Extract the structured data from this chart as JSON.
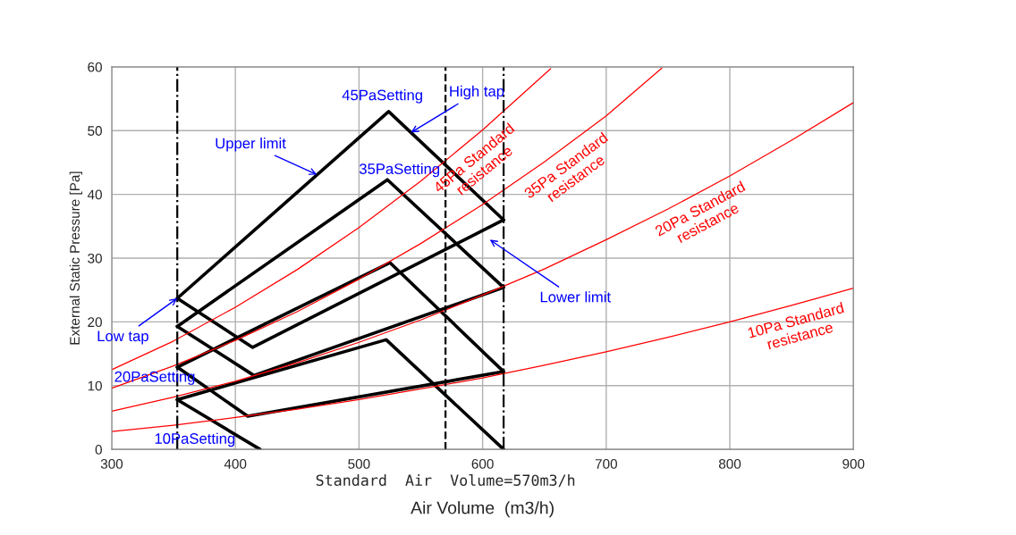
{
  "chart_data": {
    "type": "line",
    "xlabel": "Air Volume  (m3/h)",
    "ylabel": "External Static Pressure [Pa]",
    "xlim": [
      300,
      900
    ],
    "ylim": [
      0,
      60
    ],
    "xticks": [
      300,
      400,
      500,
      600,
      700,
      800,
      900
    ],
    "yticks": [
      0,
      10,
      20,
      30,
      40,
      50,
      60
    ],
    "grid": true,
    "marker": "none",
    "line_style": "solid",
    "series": [
      {
        "color": "#000000",
        "x": [
          353,
          524,
          617
        ],
        "values": [
          23.7,
          53,
          36
        ]
      },
      {
        "color": "#000000",
        "x": [
          353,
          414,
          617
        ],
        "values": [
          23.7,
          16,
          36
        ]
      },
      {
        "color": "#000000",
        "x": [
          353,
          523,
          617
        ],
        "values": [
          19.3,
          42.3,
          25.4
        ]
      },
      {
        "color": "#000000",
        "x": [
          353,
          415,
          617
        ],
        "values": [
          19.3,
          11.6,
          25.4
        ]
      },
      {
        "color": "#000000",
        "x": [
          353,
          525,
          617
        ],
        "values": [
          12.9,
          29.3,
          12.2
        ]
      },
      {
        "color": "#000000",
        "x": [
          353,
          410,
          617
        ],
        "values": [
          12.9,
          5.2,
          12.2
        ]
      },
      {
        "color": "#000000",
        "x": [
          353,
          522,
          617
        ],
        "values": [
          7.8,
          17.2,
          0
        ]
      },
      {
        "color": "#000000",
        "x": [
          353,
          420
        ],
        "values": [
          7.8,
          0
        ]
      },
      {
        "color": "#ff0000",
        "x": [
          300,
          350,
          400,
          450,
          500,
          550,
          600,
          655
        ],
        "values": [
          12.5,
          17.0,
          22.3,
          28.2,
          34.8,
          42.1,
          50.1,
          59.7
        ]
      },
      {
        "color": "#ff0000",
        "x": [
          300,
          350,
          400,
          450,
          500,
          550,
          600,
          650,
          700,
          745
        ],
        "values": [
          9.6,
          13.1,
          17.1,
          21.6,
          26.7,
          32.3,
          38.4,
          45.1,
          52.3,
          59.8
        ]
      },
      {
        "color": "#ff0000",
        "x": [
          300,
          350,
          400,
          450,
          500,
          550,
          600,
          650,
          700,
          750,
          800,
          850,
          900
        ],
        "values": [
          6.0,
          8.2,
          10.7,
          13.6,
          16.8,
          20.3,
          24.2,
          28.3,
          32.9,
          37.7,
          42.9,
          48.5,
          54.4
        ]
      },
      {
        "color": "#ff0000",
        "x": [
          300,
          350,
          400,
          450,
          500,
          550,
          600,
          650,
          700,
          750,
          800,
          850,
          900
        ],
        "values": [
          2.8,
          3.8,
          5.0,
          6.3,
          7.8,
          9.5,
          11.2,
          13.2,
          15.3,
          17.6,
          20.0,
          22.6,
          25.3
        ]
      }
    ],
    "ref_lines": [
      {
        "axis": "x",
        "value": 353,
        "line_style": "dashdot",
        "color": "#000000"
      },
      {
        "axis": "x",
        "value": 570,
        "line_style": "dashed",
        "color": "#000000",
        "label": "Standard  Air  Volume=570m3/h"
      },
      {
        "axis": "x",
        "value": 617,
        "line_style": "dashdot",
        "color": "#000000"
      }
    ],
    "annotations": [
      {
        "text": "Upper limit",
        "x": 466,
        "y": 43.1
      },
      {
        "text": "High tap",
        "x": 542,
        "y": 49.7
      },
      {
        "text": "Low tap",
        "x": 353,
        "y": 23.7
      },
      "Lower limit",
      "45PaSetting",
      "35PaSetting",
      "20PaSetting",
      "10PaSetting",
      {
        "text": "45Pa Standard\nresistance",
        "x": 585,
        "y": 47.6
      },
      {
        "text": "35Pa Standard\nresistance",
        "x": 660,
        "y": 46.5
      },
      {
        "text": "20Pa Standard\nresistance",
        "x": 770,
        "y": 39.9
      },
      {
        "text": "10Pa Standard\nresistance",
        "x": 850,
        "y": 22.6
      }
    ]
  }
}
